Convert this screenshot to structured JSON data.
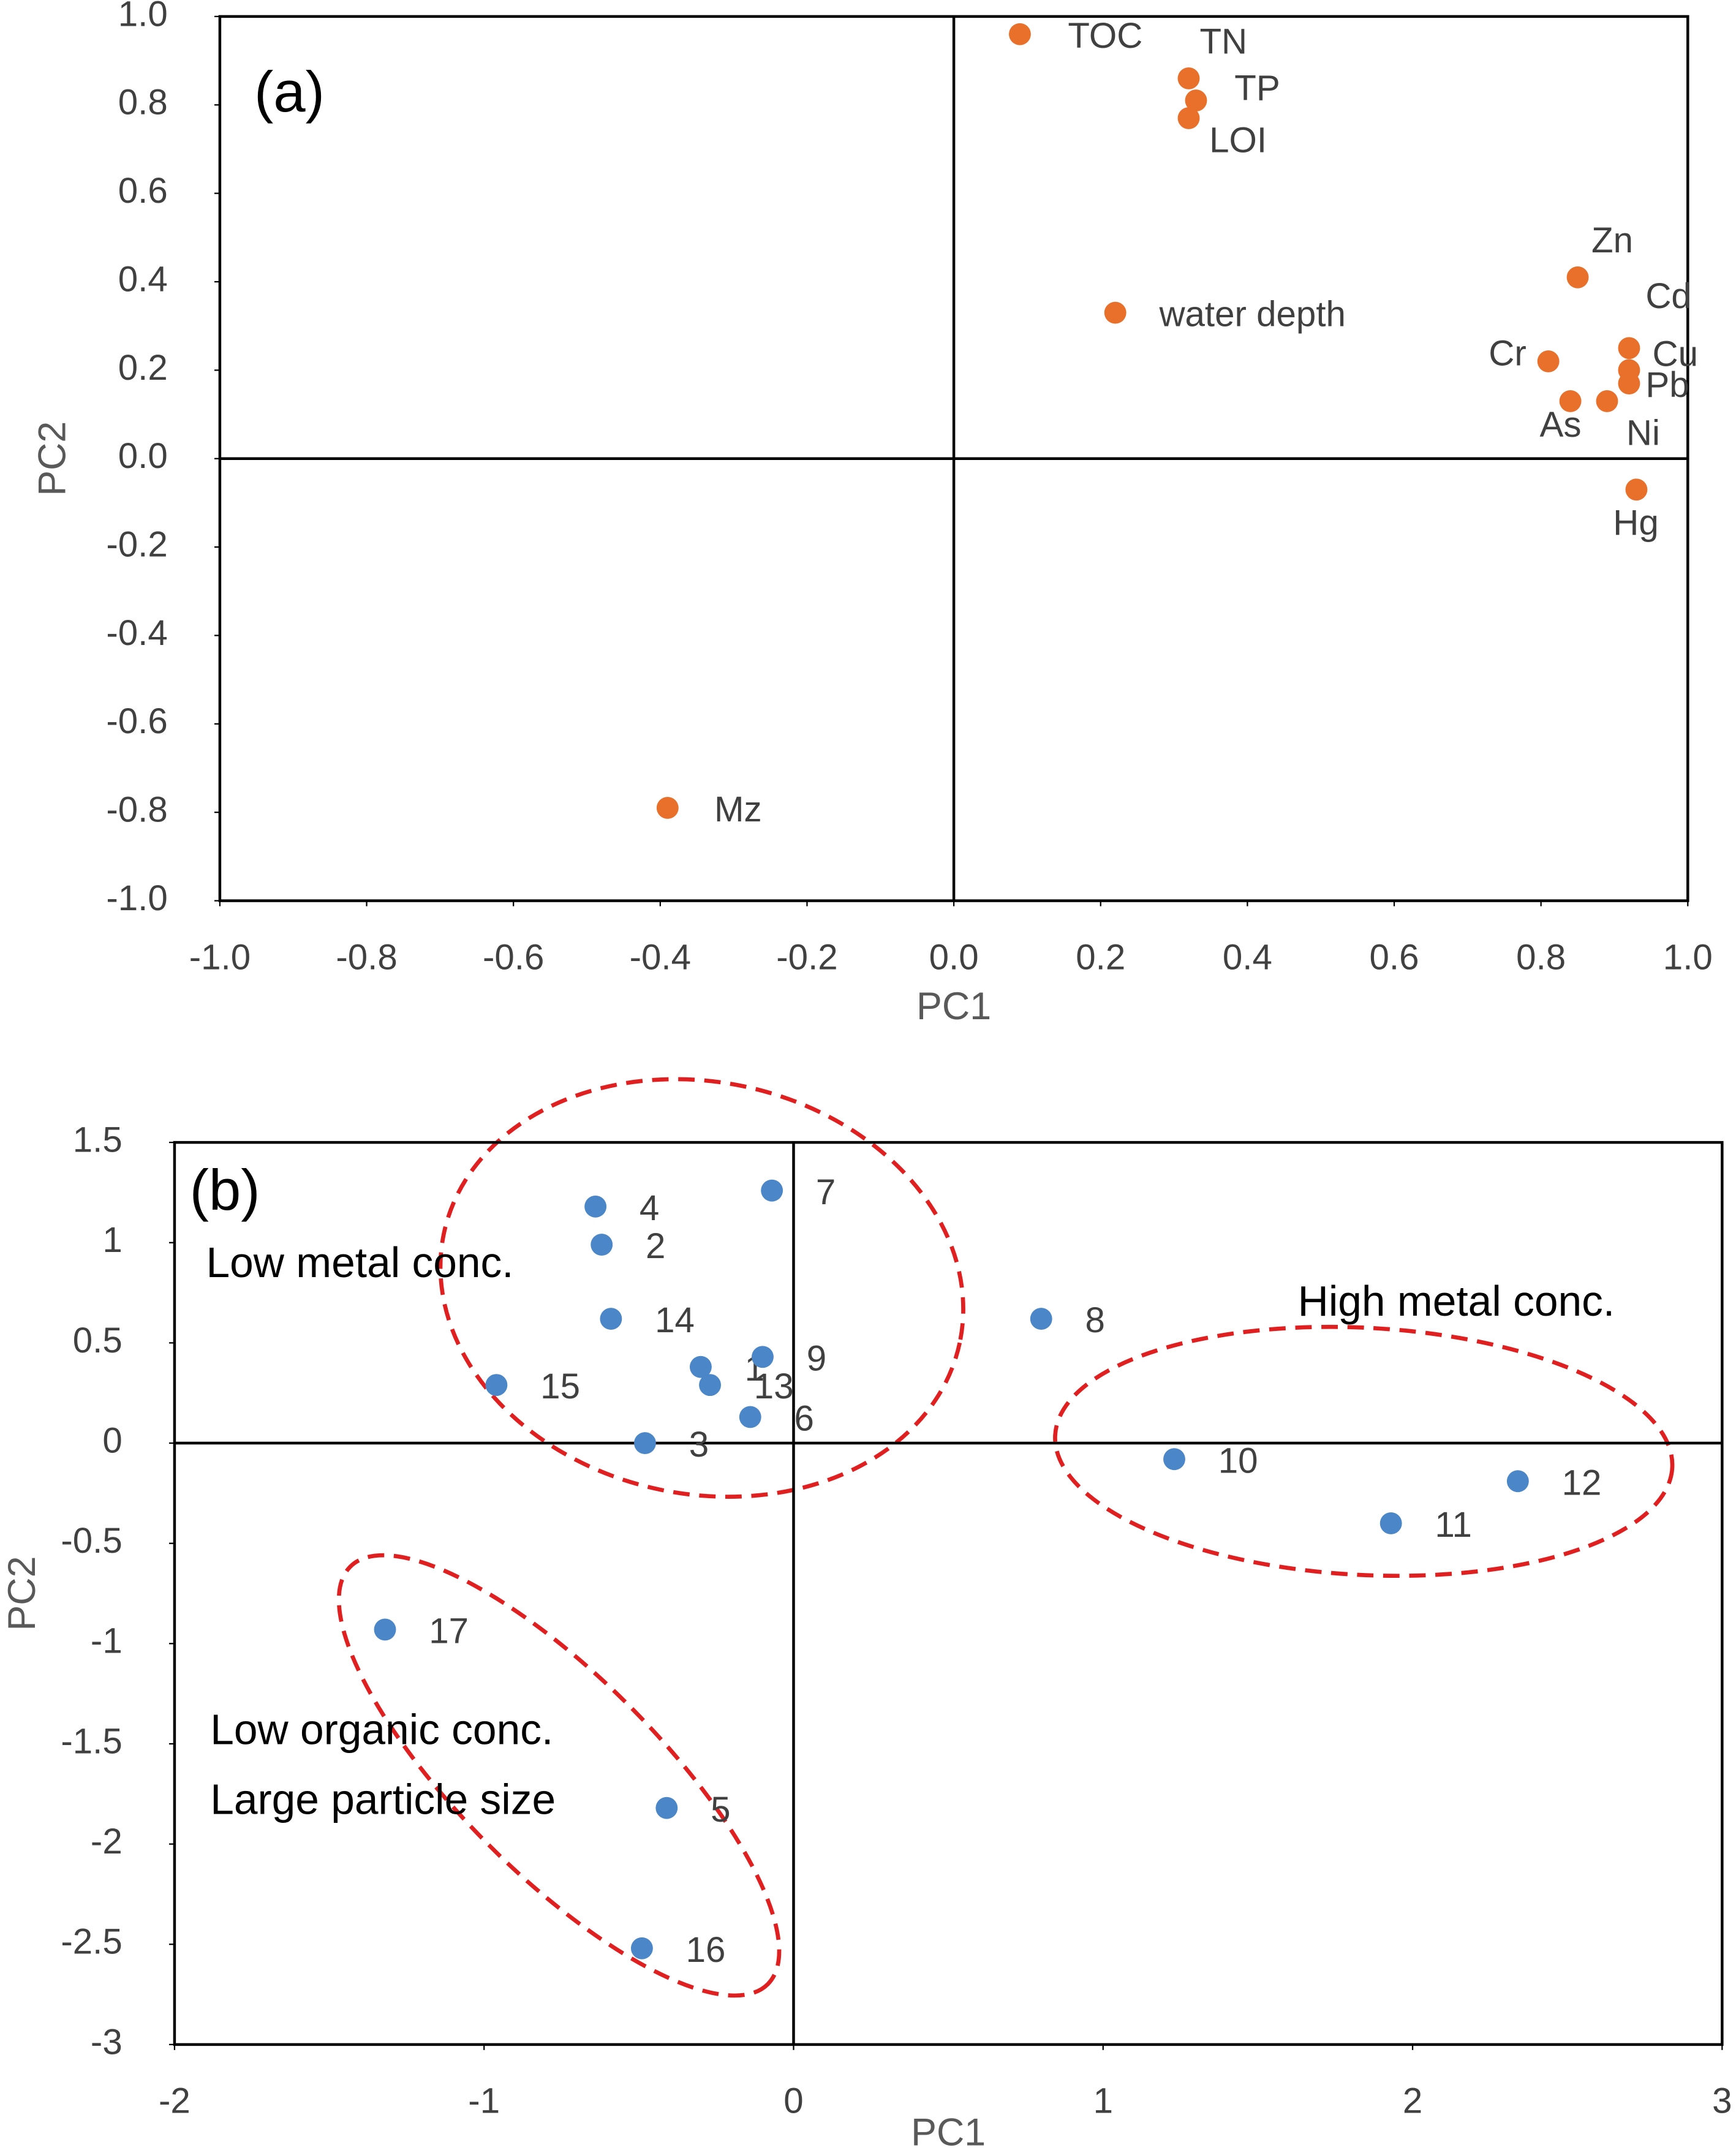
{
  "chart_data": [
    {
      "type": "scatter",
      "panel_label": "(a)",
      "x_label": "PC1",
      "y_label": "PC2",
      "color": "#e8702a",
      "labels": [
        "TOC",
        "TN",
        "TP",
        "LOI",
        "water depth",
        "Zn",
        "Cd",
        "Cu",
        "Pb",
        "Cr",
        "As",
        "Ni",
        "Hg",
        "Mz"
      ],
      "x": [
        0.09,
        0.32,
        0.33,
        0.32,
        0.22,
        0.85,
        0.92,
        0.92,
        0.92,
        0.81,
        0.84,
        0.89,
        0.93,
        -0.39
      ],
      "y": [
        0.96,
        0.86,
        0.81,
        0.77,
        0.33,
        0.41,
        0.25,
        0.2,
        0.17,
        0.22,
        0.13,
        0.13,
        -0.07,
        -0.79
      ],
      "xlim": [
        -1,
        1
      ],
      "ylim": [
        -1,
        1
      ],
      "xticks": [
        {
          "value": -1,
          "label": "-1.0"
        },
        -0.8,
        -0.6,
        -0.4,
        -0.2,
        {
          "value": 0,
          "label": "0.0"
        },
        0.2,
        0.4,
        0.6,
        0.8,
        {
          "value": 1,
          "label": "1.0"
        }
      ],
      "yticks": [
        {
          "value": -1,
          "label": "-1.0"
        },
        -0.8,
        -0.6,
        -0.4,
        -0.2,
        {
          "value": 0,
          "label": "0.0"
        },
        0.2,
        0.4,
        0.6,
        0.8,
        {
          "value": 1,
          "label": "1.0"
        }
      ]
    },
    {
      "type": "scatter",
      "panel_label": "(b)",
      "x_label": "PC1",
      "y_label": "PC2",
      "color": "#4a86c8",
      "labels": [
        "1",
        "2",
        "3",
        "4",
        "5",
        "6",
        "7",
        "8",
        "9",
        "10",
        "11",
        "12",
        "13",
        "14",
        "15",
        "16",
        "17"
      ],
      "x": [
        -0.3,
        -0.62,
        -0.48,
        -0.64,
        -0.41,
        -0.14,
        -0.07,
        0.8,
        -0.1,
        1.23,
        1.93,
        2.34,
        -0.27,
        -0.59,
        -0.96,
        -0.49,
        -1.32
      ],
      "y": [
        0.38,
        0.99,
        0.0,
        1.18,
        -1.82,
        0.13,
        1.26,
        0.62,
        0.43,
        -0.08,
        -0.4,
        -0.19,
        0.29,
        0.62,
        0.29,
        -2.52,
        -0.93
      ],
      "xlim": [
        -2,
        3
      ],
      "ylim": [
        -3,
        1.5
      ],
      "xticks": [
        -2,
        -1,
        0,
        1,
        2,
        3
      ],
      "yticks": [
        -3,
        -2.5,
        -2,
        -1.5,
        -1,
        -0.5,
        0,
        0.5,
        1,
        1.5
      ],
      "annotations": [
        "Low metal conc.",
        "High metal conc.",
        "Low organic conc.",
        "Large particle size"
      ]
    }
  ]
}
